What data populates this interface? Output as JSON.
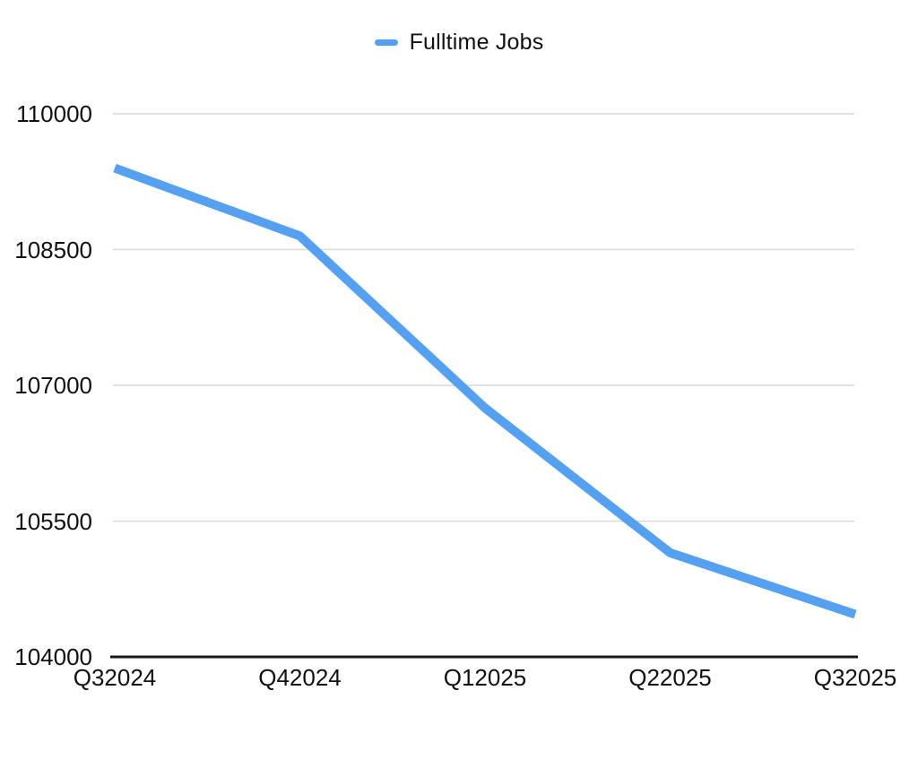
{
  "legend": {
    "label": "Fulltime Jobs"
  },
  "chart_data": {
    "type": "line",
    "title": "",
    "legend_entries": [
      "Fulltime Jobs"
    ],
    "legend_position": "top-center",
    "categories": [
      "Q32024",
      "Q42024",
      "Q12025",
      "Q22025",
      "Q32025"
    ],
    "series": [
      {
        "name": "Fulltime Jobs",
        "values": [
          109400,
          108650,
          106750,
          105150,
          104470
        ]
      }
    ],
    "xlabel": "",
    "ylabel": "",
    "ylim": [
      104000,
      110000
    ],
    "y_ticks": [
      110000,
      108500,
      107000,
      105500,
      104000
    ],
    "grid": true,
    "colors": {
      "line": "#55A0F0",
      "gridline": "#D9D9D9",
      "axis": "#1A1A1A",
      "text": "#111111",
      "background": "#FFFFFF"
    }
  }
}
